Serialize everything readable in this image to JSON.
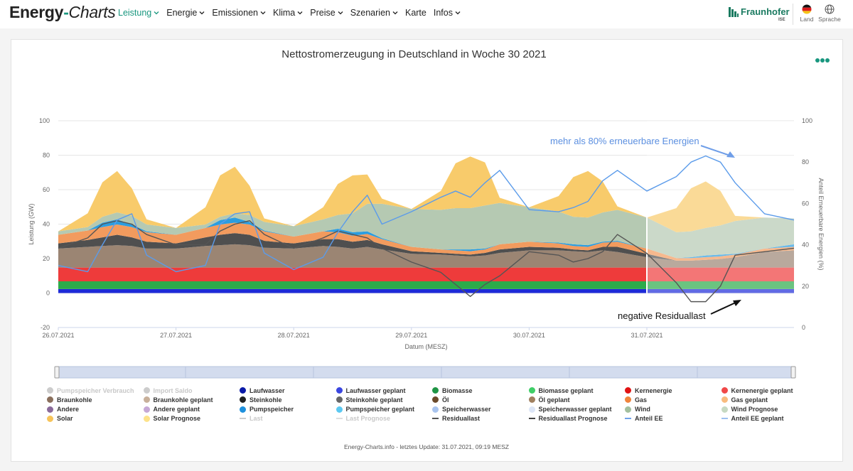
{
  "header": {
    "logo_part1": "Energy",
    "logo_dash": "-",
    "logo_part2": "Charts",
    "nav": [
      {
        "label": "Leistung",
        "active": true
      },
      {
        "label": "Energie"
      },
      {
        "label": "Emissionen"
      },
      {
        "label": "Klima"
      },
      {
        "label": "Preise"
      },
      {
        "label": "Szenarien"
      },
      {
        "label": "Karte",
        "no_chevron": true
      },
      {
        "label": "Infos"
      }
    ],
    "brand": "Fraunhofer",
    "brand_sub": "ISE",
    "country_label": "Land",
    "language_label": "Sprache",
    "accent_color": "#19977f"
  },
  "chart_data": {
    "type": "area",
    "title": "Nettostromerzeugung in Deutschland in Woche 30 2021",
    "xlabel": "Datum (MESZ)",
    "ylabel": "Leistung (GW)",
    "y2label": "Anteil Erneuerbare Energien (%)",
    "ylim": [
      -20,
      100
    ],
    "y2lim": [
      0,
      100
    ],
    "yticks": [
      -20,
      0,
      20,
      40,
      60,
      80,
      100
    ],
    "y2ticks": [
      0,
      20,
      40,
      60,
      80,
      100
    ],
    "xlim": [
      0,
      6.25
    ],
    "x_tick_labels": [
      "26.07.2021",
      "27.07.2021",
      "28.07.2021",
      "29.07.2021",
      "30.07.2021",
      "31.07.2021"
    ],
    "forecast_start_day": 5.0,
    "grid": true,
    "legend_position": "bottom",
    "x_days": [
      0,
      0.25,
      0.375,
      0.5,
      0.625,
      0.75,
      1,
      1.25,
      1.375,
      1.5,
      1.625,
      1.75,
      2,
      2.25,
      2.375,
      2.5,
      2.625,
      2.75,
      3,
      3.25,
      3.375,
      3.5,
      3.625,
      3.75,
      4,
      4.25,
      4.375,
      4.5,
      4.625,
      4.75,
      5,
      5.25,
      5.375,
      5.5,
      5.625,
      5.75,
      6,
      6.25
    ],
    "stack_order": [
      "Laufwasser",
      "Biomasse",
      "Kernenergie",
      "Braunkohle",
      "Steinkohle",
      "Gas",
      "Pumpspeicher",
      "Wind",
      "Solar"
    ],
    "series": [
      {
        "name": "Laufwasser",
        "color": "#1d2bd8",
        "values": [
          2.3,
          2.3,
          2.3,
          2.3,
          2.3,
          2.3,
          2.3,
          2.3,
          2.3,
          2.3,
          2.3,
          2.3,
          2.3,
          2.3,
          2.3,
          2.3,
          2.3,
          2.3,
          2.3,
          2.3,
          2.3,
          2.3,
          2.3,
          2.3,
          2.3,
          2.3,
          2.3,
          2.3,
          2.3,
          2.3,
          2.3,
          2.3,
          2.3,
          2.3,
          2.3,
          2.3,
          2.3,
          2.3
        ]
      },
      {
        "name": "Biomasse",
        "color": "#2cab4a",
        "values": [
          4.5,
          4.5,
          4.5,
          4.5,
          4.5,
          4.5,
          4.5,
          4.5,
          4.5,
          4.5,
          4.5,
          4.5,
          4.5,
          4.5,
          4.5,
          4.5,
          4.5,
          4.5,
          4.5,
          4.5,
          4.5,
          4.5,
          4.5,
          4.5,
          4.5,
          4.5,
          4.5,
          4.5,
          4.5,
          4.5,
          4.5,
          4.5,
          4.5,
          4.5,
          4.5,
          4.5,
          4.5,
          4.5
        ]
      },
      {
        "name": "Kernenergie",
        "color": "#ee3b3b",
        "values": [
          8,
          8,
          8,
          8,
          8,
          8,
          8,
          8,
          8,
          8,
          8,
          8,
          8,
          8,
          8,
          8,
          8,
          8,
          8,
          8,
          8,
          8,
          8,
          8,
          8,
          8,
          8,
          8,
          8,
          8,
          8,
          8,
          8,
          8,
          8,
          8,
          8,
          8
        ]
      },
      {
        "name": "Braunkohle",
        "color": "#9b8573",
        "values": [
          11,
          12,
          12.5,
          13,
          12.5,
          11,
          11,
          12.5,
          13,
          13.5,
          13,
          11.5,
          11,
          12.5,
          12,
          11,
          12,
          10.5,
          8,
          7.5,
          7,
          6.5,
          7,
          8.5,
          10,
          10,
          9.5,
          9,
          10,
          9,
          6,
          4,
          4,
          4.5,
          5,
          6,
          9,
          10
        ]
      },
      {
        "name": "Steinkohle",
        "color": "#4f4f4f",
        "values": [
          3,
          4,
          5,
          6,
          5,
          4,
          3,
          5,
          6,
          6.5,
          6,
          4,
          3,
          4,
          4.5,
          4,
          4,
          3,
          1.5,
          1,
          1,
          1,
          1.5,
          2,
          2,
          1.5,
          1,
          1,
          2,
          3,
          2,
          0,
          0,
          0,
          0,
          0,
          0,
          0
        ]
      },
      {
        "name": "Gas",
        "color": "#f29b5e",
        "values": [
          5,
          5.5,
          6,
          6,
          6,
          5.5,
          5,
          5.5,
          6,
          6,
          6,
          5.5,
          4,
          4.5,
          4,
          3.5,
          3.5,
          3,
          2.5,
          2,
          2,
          2,
          2,
          3,
          3,
          2.5,
          2,
          2,
          2.5,
          3,
          3,
          1.5,
          1.5,
          1.5,
          1.5,
          1.5,
          2,
          2
        ]
      },
      {
        "name": "Pumpspeicher",
        "color": "#2b9de0",
        "values": [
          0,
          0,
          2.5,
          3,
          1.5,
          0.5,
          0,
          0,
          2.5,
          3,
          1.5,
          0.5,
          0,
          0,
          2,
          2,
          1.5,
          0.5,
          0,
          0,
          0.5,
          1,
          0.5,
          0,
          0,
          0.5,
          1,
          1,
          0.5,
          0.5,
          0,
          0,
          0.5,
          1,
          1,
          0.5,
          0,
          1.5
        ]
      },
      {
        "name": "Wind",
        "color": "#b5c9b2",
        "values": [
          2,
          2,
          3.5,
          4,
          5,
          4,
          4,
          2,
          2,
          2.5,
          4,
          5,
          6,
          7,
          8,
          11,
          16,
          20,
          22,
          23,
          24,
          24,
          25,
          24,
          20,
          18,
          16,
          16,
          17,
          18,
          18,
          15,
          15,
          16,
          17,
          19,
          18,
          15
        ]
      },
      {
        "name": "Solar",
        "color": "#f8cb6b",
        "values": [
          0,
          8,
          20,
          24,
          16,
          3,
          0,
          10,
          24,
          27,
          17,
          2,
          0,
          7,
          18,
          22,
          17,
          3,
          0,
          11,
          26,
          30,
          25,
          3,
          0,
          9,
          23,
          27,
          18,
          2,
          0,
          14,
          25,
          27,
          20,
          3,
          0,
          0
        ]
      }
    ],
    "lines": [
      {
        "name": "Residuallast",
        "color": "#555555",
        "axis": "left",
        "values": [
          26,
          32,
          40,
          42,
          40,
          34,
          28,
          28,
          36,
          40,
          42,
          34,
          26,
          32,
          36,
          34,
          32,
          26,
          18,
          12,
          5,
          -2,
          5,
          10,
          24,
          22,
          18,
          20,
          24,
          34,
          23,
          6,
          -5,
          -5,
          4,
          22,
          24,
          26
        ]
      },
      {
        "name": "Anteil EE",
        "color": "#5b9bea",
        "axis": "right",
        "values": [
          30,
          27,
          40,
          52,
          55,
          35,
          27,
          30,
          50,
          55,
          56,
          36,
          28,
          34,
          46,
          56,
          64,
          50,
          56,
          63,
          66,
          63,
          70,
          76,
          57,
          56,
          58,
          61,
          71,
          76,
          66,
          73,
          80,
          83,
          80,
          70,
          55,
          52
        ]
      }
    ]
  },
  "annotations": {
    "ee_note": "mehr als 80% erneuerbare Energien",
    "residual_note": "negative Residuallast"
  },
  "legend": [
    {
      "label": "Pumpspeicher Verbrauch",
      "color": "#cccccc",
      "kind": "dot",
      "dim": true
    },
    {
      "label": "Import Saldo",
      "color": "#cccccc",
      "kind": "dot",
      "dim": true
    },
    {
      "label": "Laufwasser",
      "color": "#0a1aa8",
      "kind": "dot"
    },
    {
      "label": "Laufwasser geplant",
      "color": "#3a46e0",
      "kind": "dot"
    },
    {
      "label": "Biomasse",
      "color": "#1e9444",
      "kind": "dot"
    },
    {
      "label": "Biomasse geplant",
      "color": "#3fce67",
      "kind": "dot"
    },
    {
      "label": "Kernenergie",
      "color": "#e11313",
      "kind": "dot"
    },
    {
      "label": "Kernenergie geplant",
      "color": "#f04848",
      "kind": "dot"
    },
    {
      "label": "Braunkohle",
      "color": "#8a6f5c",
      "kind": "dot"
    },
    {
      "label": "Braunkohle geplant",
      "color": "#c8b09a",
      "kind": "dot"
    },
    {
      "label": "Steinkohle",
      "color": "#222222",
      "kind": "dot"
    },
    {
      "label": "Steinkohle geplant",
      "color": "#666666",
      "kind": "dot"
    },
    {
      "label": "Öl",
      "color": "#6b4a2a",
      "kind": "dot"
    },
    {
      "label": "Öl geplant",
      "color": "#a08060",
      "kind": "dot"
    },
    {
      "label": "Gas",
      "color": "#f0843c",
      "kind": "dot"
    },
    {
      "label": "Gas geplant",
      "color": "#f8bb7e",
      "kind": "dot"
    },
    {
      "label": "Andere",
      "color": "#8a6a9a",
      "kind": "dot"
    },
    {
      "label": "Andere geplant",
      "color": "#c6a8d6",
      "kind": "dot"
    },
    {
      "label": "Pumpspeicher",
      "color": "#1e90dd",
      "kind": "dot"
    },
    {
      "label": "Pumpspeicher geplant",
      "color": "#5cc9f2",
      "kind": "dot"
    },
    {
      "label": "Speicherwasser",
      "color": "#a9c4ee",
      "kind": "dot"
    },
    {
      "label": "Speicherwasser geplant",
      "color": "#dde6f7",
      "kind": "dot"
    },
    {
      "label": "Wind",
      "color": "#a3bf9e",
      "kind": "dot"
    },
    {
      "label": "Wind Prognose",
      "color": "#c6d9c2",
      "kind": "dot"
    },
    {
      "label": "Solar",
      "color": "#f7c45a",
      "kind": "dot"
    },
    {
      "label": "Solar Prognose",
      "color": "#fde28a",
      "kind": "dot"
    },
    {
      "label": "Last",
      "color": "#cccccc",
      "kind": "line",
      "dim": true
    },
    {
      "label": "Last Prognose",
      "color": "#dddddd",
      "kind": "line",
      "dim": true
    },
    {
      "label": "Residuallast",
      "color": "#555555",
      "kind": "line"
    },
    {
      "label": "Residuallast Prognose",
      "color": "#444444",
      "kind": "line"
    },
    {
      "label": "Anteil EE",
      "color": "#6fa1e8",
      "kind": "line"
    },
    {
      "label": "Anteil EE geplant",
      "color": "#9cc0f0",
      "kind": "line"
    }
  ],
  "footer": "Energy-Charts.info - letztes Update: 31.07.2021, 09:19 MESZ"
}
